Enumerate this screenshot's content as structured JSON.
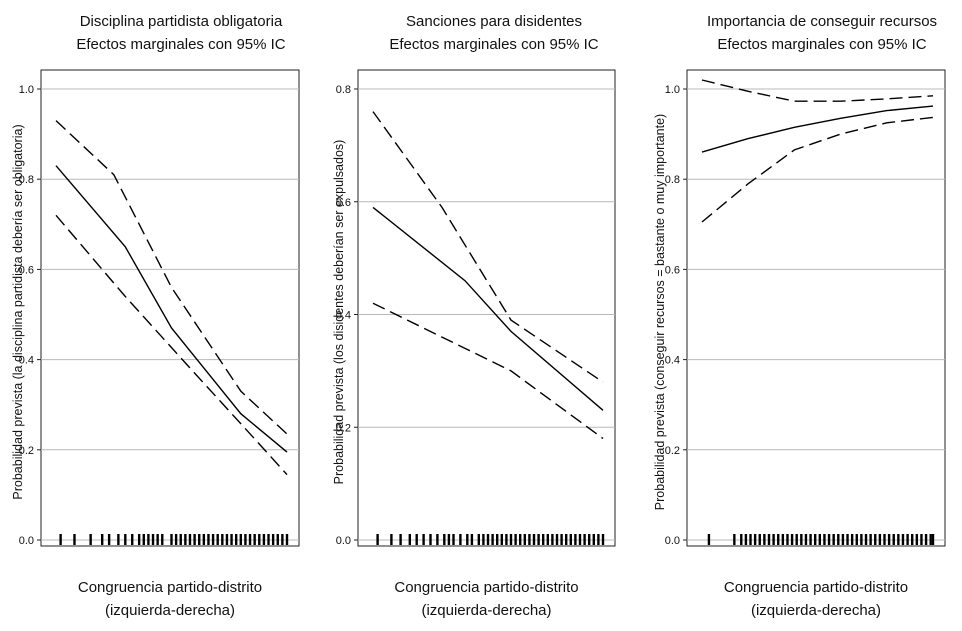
{
  "chart_data": [
    {
      "type": "line",
      "title": "Disciplina partidista obligatoria",
      "subtitle": "Efectos marginales con 95% IC",
      "xlabel": "Congruencia partido-distrito",
      "xlabel2": "(izquierda-derecha)",
      "ylabel": "Probabilidad prevista (la disciplina partidista debería ser obligatoria)",
      "ylim": [
        0,
        1.0
      ],
      "yticks": [
        "0.0",
        "0.2",
        "0.4",
        "0.6",
        "0.8",
        "1.0"
      ],
      "ytick_values": [
        0,
        0.2,
        0.4,
        0.6,
        0.8,
        1.0
      ],
      "xlim": [
        0,
        1
      ],
      "grid": true,
      "series": [
        {
          "role": "estimate",
          "x": [
            0,
            0.3,
            0.5,
            0.8,
            1.0
          ],
          "values": [
            0.83,
            0.65,
            0.47,
            0.28,
            0.195
          ]
        },
        {
          "role": "upper",
          "x": [
            0,
            0.25,
            0.5,
            0.8,
            1.0
          ],
          "values": [
            0.93,
            0.81,
            0.56,
            0.33,
            0.235
          ]
        },
        {
          "role": "lower",
          "x": [
            0,
            0.3,
            0.6,
            0.85,
            1.0
          ],
          "values": [
            0.72,
            0.54,
            0.37,
            0.23,
            0.145
          ]
        }
      ],
      "rug": [
        0.02,
        0.08,
        0.15,
        0.2,
        0.23,
        0.27,
        0.3,
        0.33,
        0.36,
        0.38,
        0.4,
        0.42,
        0.44,
        0.46,
        0.5,
        0.52,
        0.54,
        0.56,
        0.58,
        0.6,
        0.62,
        0.64,
        0.66,
        0.68,
        0.7,
        0.72,
        0.74,
        0.76,
        0.78,
        0.8,
        0.82,
        0.84,
        0.86,
        0.88,
        0.9,
        0.92,
        0.94,
        0.96,
        0.98,
        1.0
      ]
    },
    {
      "type": "line",
      "title": "Sanciones para disidentes",
      "subtitle": "Efectos marginales con 95% IC",
      "xlabel": "Congruencia partido-distrito",
      "xlabel2": "(izquierda-derecha)",
      "ylabel": "Probabilidad prevista (los disidentes deberían ser expulsados)",
      "ylim": [
        0,
        0.8
      ],
      "yticks": [
        "0.0",
        "0.2",
        "0.4",
        "0.6",
        "0.8"
      ],
      "ytick_values": [
        0,
        0.2,
        0.4,
        0.6,
        0.8
      ],
      "xlim": [
        0,
        1
      ],
      "grid": true,
      "series": [
        {
          "role": "estimate",
          "x": [
            0,
            0.4,
            0.6,
            1.0
          ],
          "values": [
            0.59,
            0.46,
            0.37,
            0.23
          ]
        },
        {
          "role": "upper",
          "x": [
            0,
            0.3,
            0.6,
            1.0
          ],
          "values": [
            0.76,
            0.59,
            0.39,
            0.28
          ]
        },
        {
          "role": "lower",
          "x": [
            0,
            0.3,
            0.6,
            1.0
          ],
          "values": [
            0.42,
            0.36,
            0.3,
            0.18
          ]
        }
      ],
      "rug": [
        0.02,
        0.08,
        0.12,
        0.16,
        0.19,
        0.22,
        0.25,
        0.28,
        0.31,
        0.33,
        0.35,
        0.38,
        0.41,
        0.43,
        0.46,
        0.48,
        0.5,
        0.52,
        0.54,
        0.56,
        0.58,
        0.6,
        0.62,
        0.64,
        0.66,
        0.68,
        0.7,
        0.72,
        0.74,
        0.76,
        0.78,
        0.8,
        0.82,
        0.84,
        0.86,
        0.88,
        0.9,
        0.92,
        0.94,
        0.96,
        0.98,
        1.0
      ]
    },
    {
      "type": "line",
      "title": "Importancia de conseguir recursos",
      "subtitle": "Efectos marginales con 95% IC",
      "xlabel": "Congruencia partido-distrito",
      "xlabel2": "(izquierda-derecha)",
      "ylabel": "Probabilidad prevista (conseguir recursos = bastante o muy importante)",
      "ylim": [
        0,
        1.0
      ],
      "yticks": [
        "0.0",
        "0.2",
        "0.4",
        "0.6",
        "0.8",
        "1.0"
      ],
      "ytick_values": [
        0,
        0.2,
        0.4,
        0.6,
        0.8,
        1.0
      ],
      "xlim": [
        0,
        1
      ],
      "grid": true,
      "series": [
        {
          "role": "estimate",
          "x": [
            0,
            0.2,
            0.4,
            0.6,
            0.8,
            1.0
          ],
          "values": [
            0.86,
            0.89,
            0.915,
            0.935,
            0.952,
            0.962
          ]
        },
        {
          "role": "upper",
          "x": [
            0,
            0.2,
            0.4,
            0.6,
            0.8,
            1.0
          ],
          "values": [
            1.02,
            0.995,
            0.973,
            0.973,
            0.978,
            0.985
          ]
        },
        {
          "role": "lower",
          "x": [
            0,
            0.2,
            0.4,
            0.6,
            0.8,
            1.0
          ],
          "values": [
            0.705,
            0.79,
            0.865,
            0.9,
            0.925,
            0.937
          ]
        }
      ],
      "rug": [
        0.03,
        0.14,
        0.17,
        0.19,
        0.21,
        0.23,
        0.25,
        0.27,
        0.29,
        0.31,
        0.33,
        0.35,
        0.37,
        0.39,
        0.41,
        0.43,
        0.45,
        0.47,
        0.49,
        0.51,
        0.53,
        0.55,
        0.57,
        0.59,
        0.61,
        0.63,
        0.65,
        0.67,
        0.69,
        0.71,
        0.73,
        0.75,
        0.77,
        0.79,
        0.81,
        0.83,
        0.85,
        0.87,
        0.89,
        0.91,
        0.93,
        0.95,
        0.97,
        0.99,
        1.0
      ]
    }
  ]
}
